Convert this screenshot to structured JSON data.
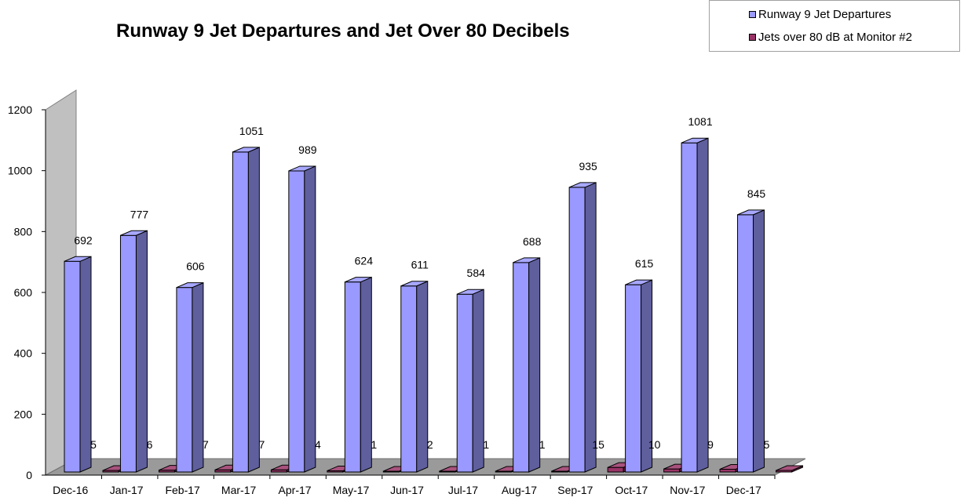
{
  "chart_data": {
    "type": "bar",
    "title": "Runway 9 Jet Departures and Jet Over 80 Decibels",
    "categories": [
      "Dec-16",
      "Jan-17",
      "Feb-17",
      "Mar-17",
      "Apr-17",
      "May-17",
      "Jun-17",
      "Jul-17",
      "Aug-17",
      "Sep-17",
      "Oct-17",
      "Nov-17",
      "Dec-17"
    ],
    "series": [
      {
        "name": "Runway 9 Jet Departures",
        "values": [
          692,
          777,
          606,
          1051,
          989,
          624,
          611,
          584,
          688,
          935,
          615,
          1081,
          845
        ],
        "color": "#9999ff"
      },
      {
        "name": "Jets over 80 dB at Monitor #2",
        "values": [
          5,
          6,
          7,
          7,
          4,
          1,
          2,
          1,
          1,
          15,
          10,
          9,
          5
        ],
        "color": "#993366"
      }
    ],
    "yticks": [
      0,
      200,
      400,
      600,
      800,
      1000,
      1200
    ],
    "ylim": [
      0,
      1200
    ],
    "legend_position": "top-right",
    "three_d": true
  }
}
